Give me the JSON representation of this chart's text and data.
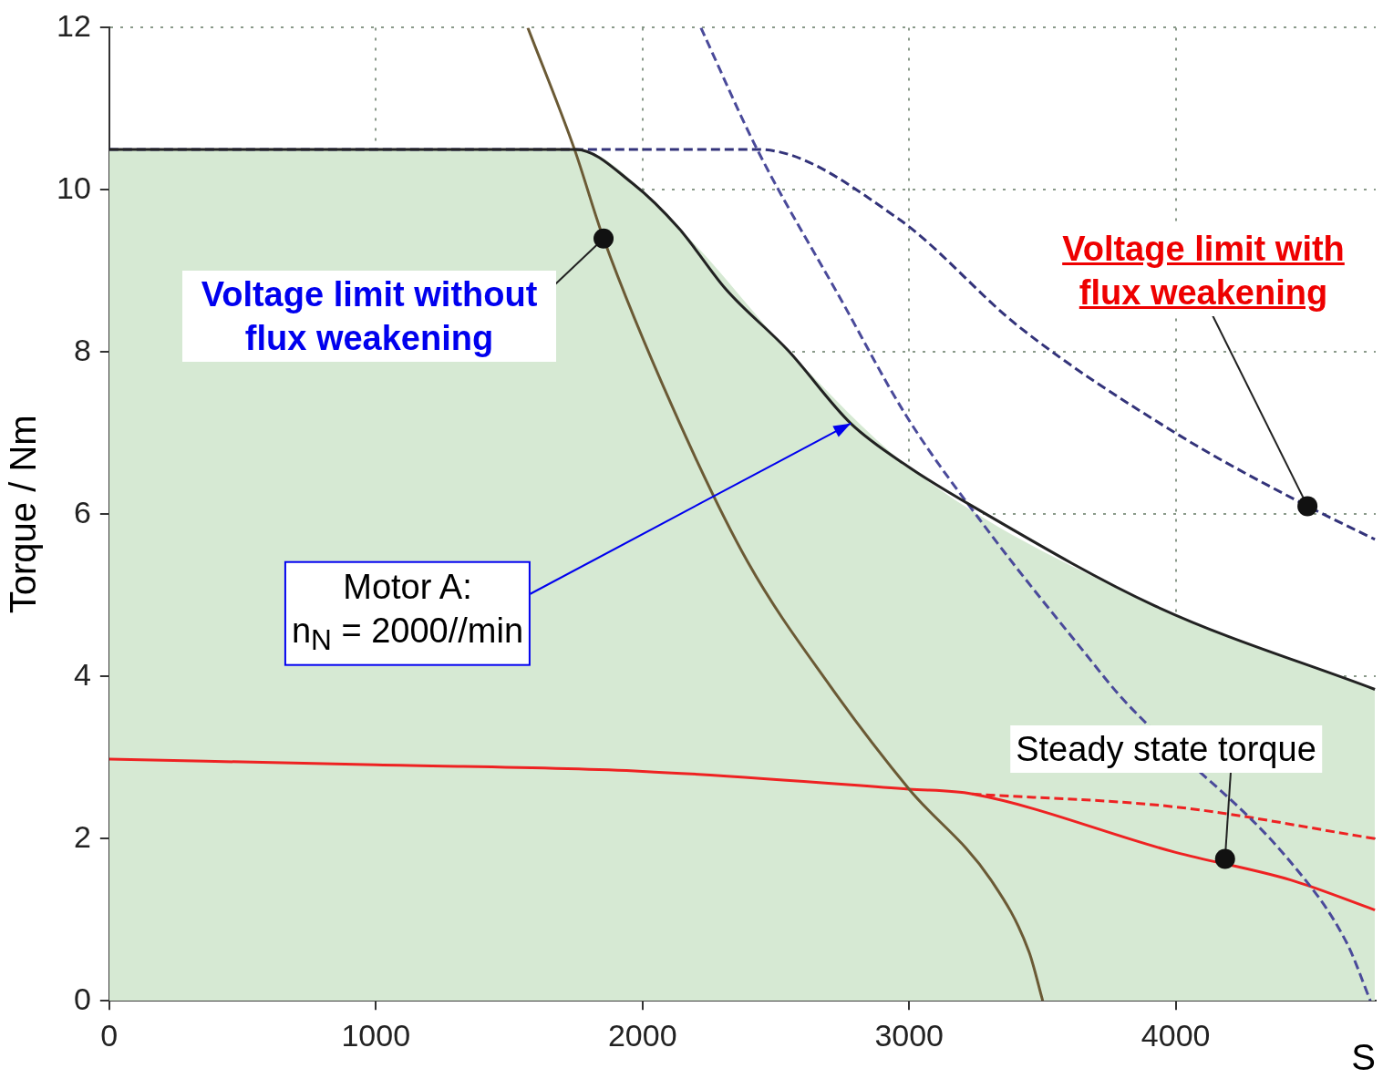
{
  "chart_data": {
    "type": "line",
    "xlabel": "S",
    "ylabel": "Torque / Nm",
    "xlim": [
      0,
      4750
    ],
    "xticks": [
      0,
      1000,
      2000,
      3000,
      4000
    ],
    "ylim": [
      0,
      12
    ],
    "yticks": [
      0,
      2,
      4,
      6,
      8,
      10,
      12
    ],
    "grid": true,
    "legend": false,
    "marker": "none",
    "series": [
      {
        "type": "area",
        "color": "#d6e9d3",
        "x": [
          0,
          1750,
          2138,
          2546,
          3000,
          3922,
          4747
        ],
        "values": [
          10.5,
          10.5,
          9.52,
          8.02,
          6.58,
          4.87,
          3.84
        ]
      },
      {
        "type": "line",
        "color": "#222222",
        "x": [
          0,
          1750,
          1963,
          2138,
          2314,
          2546,
          2781,
          3000,
          3237,
          3922,
          4747
        ],
        "values": [
          10.5,
          10.5,
          10.08,
          9.52,
          8.77,
          8.02,
          7.12,
          6.58,
          6.1,
          4.87,
          3.84
        ]
      },
      {
        "type": "line",
        "color": "#6b5a35",
        "x": [
          1570,
          1745,
          1854,
          2114,
          2395,
          2700,
          3000,
          3307,
          3450,
          3501
        ],
        "values": [
          12,
          10.5,
          9.4,
          7.31,
          5.41,
          3.9,
          2.61,
          1.49,
          0.6,
          0
        ]
      },
      {
        "type": "line",
        "color": "#33337a",
        "line_style": "dashed",
        "x": [
          0,
          2430,
          2957,
          3413,
          4010,
          4494,
          4747
        ],
        "values": [
          10.5,
          10.5,
          9.65,
          8.31,
          6.98,
          6.1,
          5.69
        ]
      },
      {
        "type": "line",
        "color": "#4a4a9a",
        "line_style": "dashed",
        "x": [
          2219,
          2430,
          2744,
          2992,
          3307,
          3659,
          3799,
          4431,
          4642,
          4730
        ],
        "values": [
          12,
          10.5,
          8.65,
          7.2,
          5.75,
          4.29,
          3.73,
          1.71,
          0.71,
          0
        ]
      },
      {
        "type": "line",
        "color": "#ee2222",
        "x": [
          0,
          1000,
          2000,
          3000,
          3237,
          4000,
          4431,
          4747
        ],
        "values": [
          2.98,
          2.91,
          2.83,
          2.61,
          2.55,
          1.83,
          1.49,
          1.12
        ]
      },
      {
        "type": "line",
        "color": "#ee2222",
        "line_style": "dashed",
        "x": [
          3237,
          4000,
          4747
        ],
        "values": [
          2.55,
          2.39,
          2.0
        ]
      }
    ],
    "annotations": [
      {
        "text": "Voltage limit without flux weakening",
        "x": 1854,
        "y": 9.4
      },
      {
        "text": "Voltage limit with flux weakening",
        "x": 4494,
        "y": 6.1
      },
      {
        "text": "Motor A: n$_{N}$ = 2000//min",
        "x": 2781,
        "y": 7.12
      },
      {
        "text": "Steady state torque",
        "x": 4185,
        "y": 1.75
      }
    ]
  }
}
